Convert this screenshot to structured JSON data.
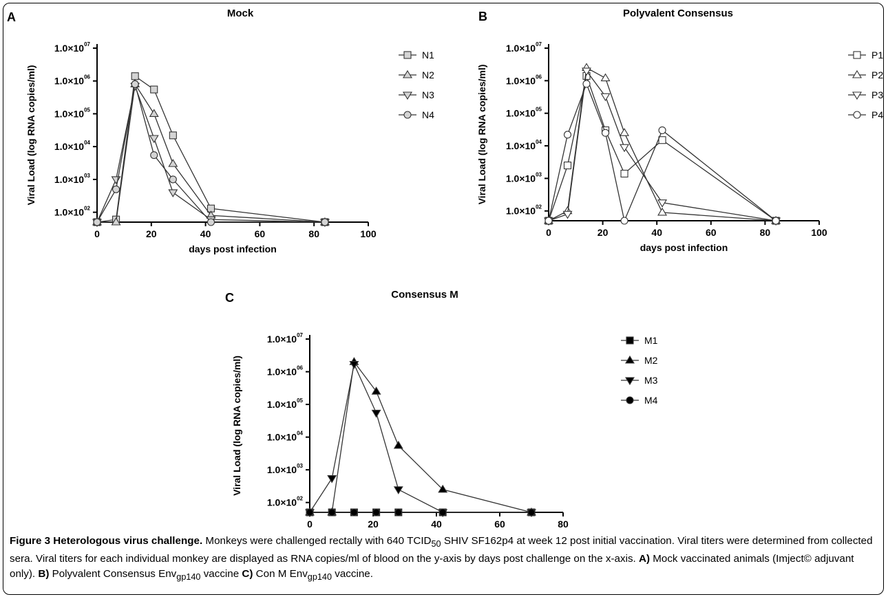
{
  "chart_data": [
    {
      "panel": "A",
      "type": "line",
      "title": "Mock",
      "xlabel": "days post infection",
      "ylabel": "Viral Load (log RNA copies/ml)",
      "xticks": [
        "0",
        "20",
        "40",
        "60",
        "80",
        "100"
      ],
      "xlim": [
        0,
        100
      ],
      "yscale": "log",
      "ylim": [
        50,
        10000000
      ],
      "yticks": [
        {
          "base": "1.0×10",
          "exp": "02",
          "v": 100
        },
        {
          "base": "1.0×10",
          "exp": "03",
          "v": 1000
        },
        {
          "base": "1.0×10",
          "exp": "04",
          "v": 10000
        },
        {
          "base": "1.0×10",
          "exp": "05",
          "v": 100000
        },
        {
          "base": "1.0×10",
          "exp": "06",
          "v": 1000000
        },
        {
          "base": "1.0×10",
          "exp": "07",
          "v": 10000000
        }
      ],
      "series": [
        {
          "name": "N1",
          "marker": "square",
          "fill": "#d4d4d4",
          "x": [
            0,
            7,
            14,
            21,
            28,
            42,
            84
          ],
          "y": [
            50,
            60,
            1400000,
            550000,
            22000,
            130,
            50
          ]
        },
        {
          "name": "N2",
          "marker": "triangle-up",
          "fill": "#d4d4d4",
          "x": [
            0,
            7,
            14,
            21,
            28,
            42,
            84
          ],
          "y": [
            50,
            50,
            800000,
            100000,
            3000,
            80,
            50
          ]
        },
        {
          "name": "N3",
          "marker": "triangle-down",
          "fill": "#d4d4d4",
          "x": [
            0,
            7,
            14,
            21,
            28,
            42,
            84
          ],
          "y": [
            50,
            1000,
            700000,
            18000,
            400,
            60,
            50
          ]
        },
        {
          "name": "N4",
          "marker": "circle",
          "fill": "#d4d4d4",
          "x": [
            0,
            7,
            14,
            21,
            28,
            42,
            84
          ],
          "y": [
            50,
            500,
            800000,
            5500,
            1000,
            50,
            50
          ]
        }
      ]
    },
    {
      "panel": "B",
      "type": "line",
      "title": "Polyvalent Consensus",
      "xlabel": "days post infection",
      "ylabel": "Viral Load (log RNA copies/ml)",
      "xticks": [
        "0",
        "20",
        "40",
        "60",
        "80",
        "100"
      ],
      "xlim": [
        0,
        100
      ],
      "yscale": "log",
      "ylim": [
        50,
        10000000
      ],
      "yticks": [
        {
          "base": "1.0×10",
          "exp": "02",
          "v": 100
        },
        {
          "base": "1.0×10",
          "exp": "03",
          "v": 1000
        },
        {
          "base": "1.0×10",
          "exp": "04",
          "v": 10000
        },
        {
          "base": "1.0×10",
          "exp": "05",
          "v": 100000
        },
        {
          "base": "1.0×10",
          "exp": "06",
          "v": 1000000
        },
        {
          "base": "1.0×10",
          "exp": "07",
          "v": 10000000
        }
      ],
      "series": [
        {
          "name": "P1",
          "marker": "square",
          "fill": "none",
          "x": [
            0,
            7,
            14,
            21,
            28,
            42,
            84
          ],
          "y": [
            50,
            2500,
            1400000,
            30000,
            1400,
            15000,
            50
          ]
        },
        {
          "name": "P2",
          "marker": "triangle-up",
          "fill": "none",
          "x": [
            0,
            7,
            14,
            21,
            28,
            42,
            84
          ],
          "y": [
            50,
            100,
            2500000,
            1200000,
            25000,
            90,
            50
          ]
        },
        {
          "name": "P3",
          "marker": "triangle-down",
          "fill": "none",
          "x": [
            0,
            7,
            14,
            21,
            28,
            42,
            84
          ],
          "y": [
            50,
            80,
            2000000,
            330000,
            9000,
            180,
            50
          ]
        },
        {
          "name": "P4",
          "marker": "circle",
          "fill": "none",
          "x": [
            0,
            7,
            14,
            21,
            28,
            42,
            84
          ],
          "y": [
            50,
            22000,
            800000,
            25000,
            50,
            30000,
            50
          ]
        }
      ]
    },
    {
      "panel": "C",
      "type": "line",
      "title": "Consensus M",
      "xlabel": "days post infection",
      "ylabel": "Viral Load (log RNA copies/ml)",
      "xticks": [
        "0",
        "20",
        "40",
        "60",
        "80"
      ],
      "xlim": [
        0,
        80
      ],
      "yscale": "log",
      "ylim": [
        50,
        10000000
      ],
      "yticks": [
        {
          "base": "1.0×10",
          "exp": "02",
          "v": 100
        },
        {
          "base": "1.0×10",
          "exp": "03",
          "v": 1000
        },
        {
          "base": "1.0×10",
          "exp": "04",
          "v": 10000
        },
        {
          "base": "1.0×10",
          "exp": "05",
          "v": 100000
        },
        {
          "base": "1.0×10",
          "exp": "06",
          "v": 1000000
        },
        {
          "base": "1.0×10",
          "exp": "07",
          "v": 10000000
        }
      ],
      "series": [
        {
          "name": "M1",
          "marker": "square",
          "fill": "#000000",
          "x": [
            0,
            7,
            14,
            21,
            28,
            42,
            70
          ],
          "y": [
            50,
            50,
            50,
            50,
            50,
            50,
            50
          ]
        },
        {
          "name": "M2",
          "marker": "triangle-up",
          "fill": "#000000",
          "x": [
            0,
            7,
            14,
            21,
            28,
            42,
            70
          ],
          "y": [
            50,
            50,
            2000000,
            250000,
            5500,
            250,
            50
          ]
        },
        {
          "name": "M3",
          "marker": "triangle-down",
          "fill": "#000000",
          "x": [
            0,
            7,
            14,
            21,
            28,
            42,
            70
          ],
          "y": [
            50,
            550,
            1700000,
            55000,
            250,
            50,
            50
          ]
        },
        {
          "name": "M4",
          "marker": "circle",
          "fill": "#000000",
          "x": [
            0,
            7,
            14,
            21,
            28,
            42,
            70
          ],
          "y": [
            50,
            50,
            50,
            50,
            50,
            50,
            50
          ]
        }
      ]
    }
  ],
  "caption": {
    "label": "Figure 3 Heterologous virus challenge.",
    "t1": " Monkeys were challenged rectally with 640 TCID",
    "s1": "50",
    "t2": " SHIV SF162p4 at week 12 post initial vaccination. Viral titers were determined from collected sera. Viral titers for each individual monkey are displayed as RNA copies/ml of blood on the y-axis by days post challenge on the x-axis. ",
    "a_label": "A)",
    "a_text": " Mock vaccinated animals (Imject© adjuvant only). ",
    "b_label": "B)",
    "b_text": " Polyvalent Consensus Env",
    "b_sub": "gp140",
    "b_text2": " vaccine ",
    "c_label": "C)",
    "c_text": " Con M Env",
    "c_sub": "gp140",
    "c_text2": " vaccine."
  }
}
